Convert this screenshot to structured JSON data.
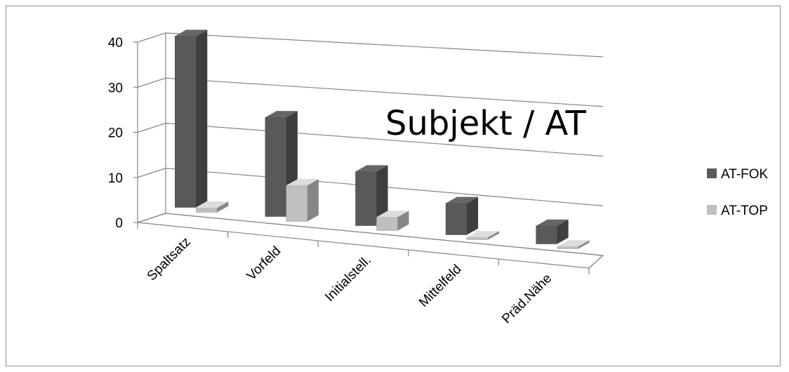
{
  "chart_data": {
    "type": "bar",
    "title": "Subjekt / AT",
    "categories": [
      "Spaltsatz",
      "Vorfeld",
      "Initialstell.",
      "Mittelfeld",
      "Präd.Nähe"
    ],
    "series": [
      {
        "name": "AT-FOK",
        "values": [
          38,
          22,
          12,
          7,
          4
        ],
        "color": "#595959"
      },
      {
        "name": "AT-TOP",
        "values": [
          1,
          8,
          3,
          0.5,
          0.5
        ],
        "color": "#bfbfbf"
      }
    ],
    "ylim": [
      0,
      40
    ],
    "yticks": [
      "0",
      "10",
      "20",
      "30",
      "40"
    ],
    "xlabel": "",
    "ylabel": "",
    "grid": true,
    "legend": "right",
    "style": "3d-clustered-column"
  }
}
